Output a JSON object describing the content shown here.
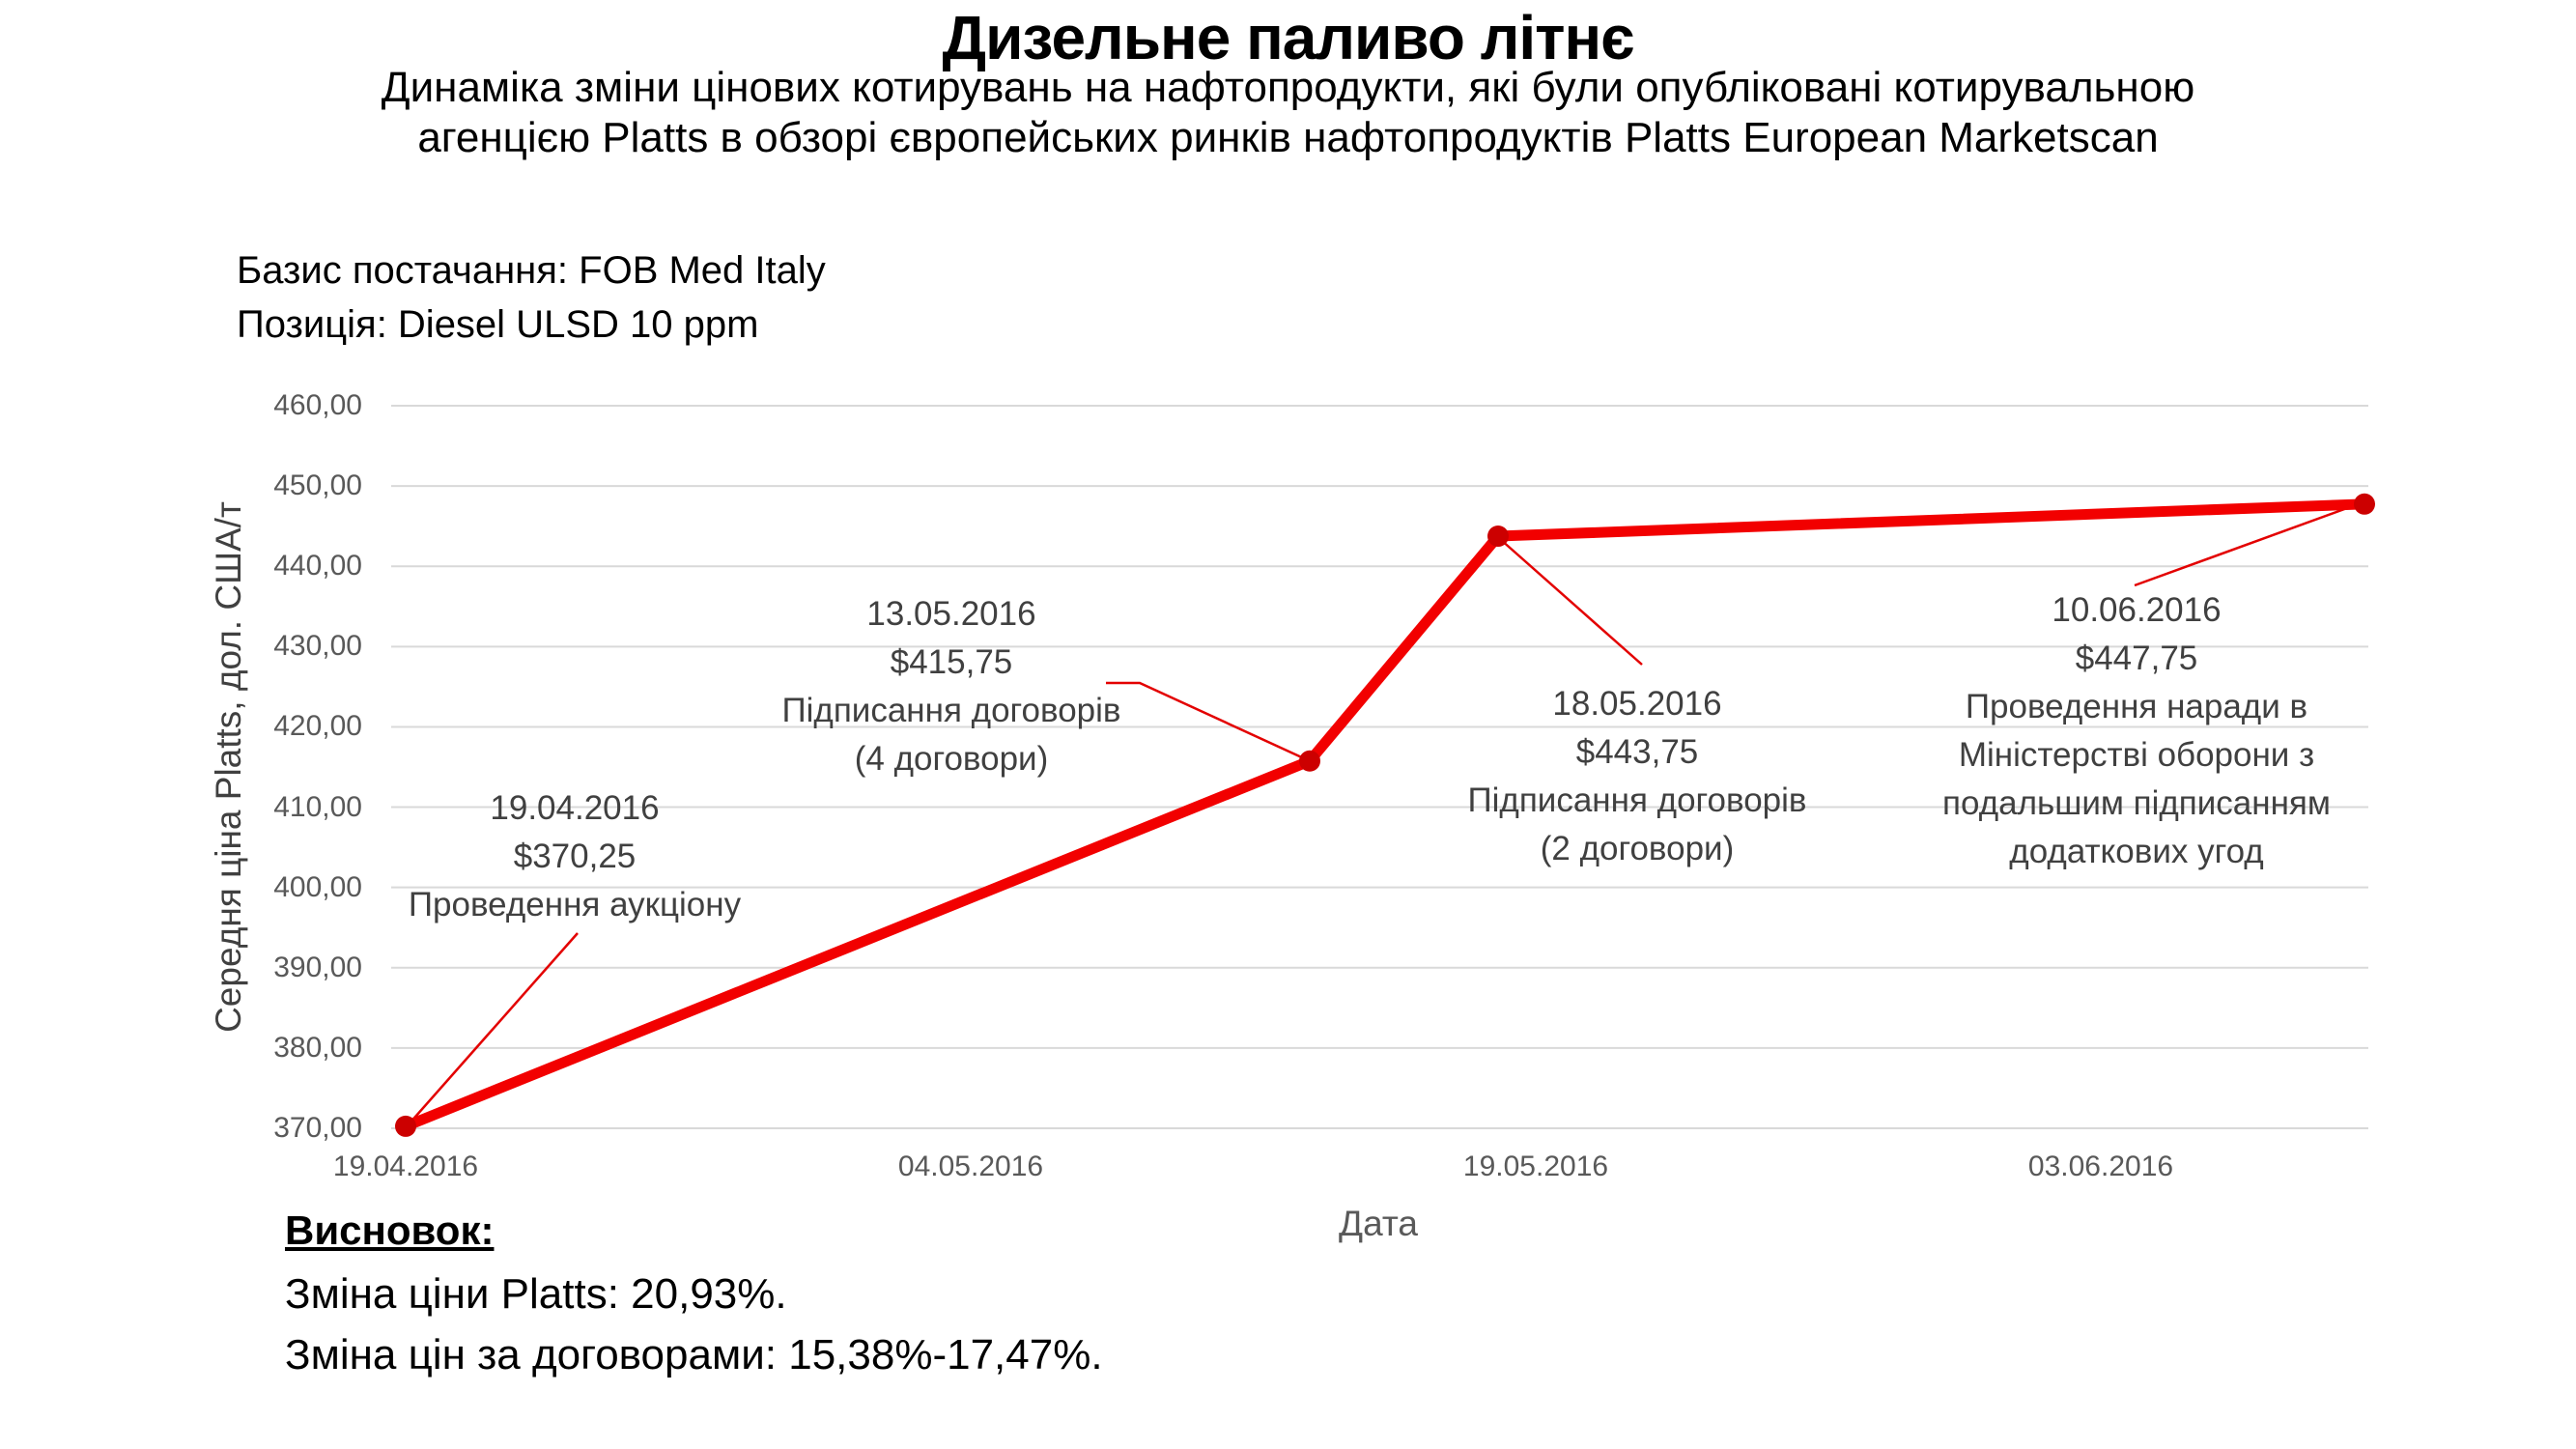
{
  "header": {
    "title": "Дизельне паливо літнє",
    "subtitle_lines": [
      "Динаміка зміни цінових котирувань на нафтопродукти, які були опубліковані котирувальною",
      "агенцією Platts в обзорі європейських ринків нафтопродуктів Platts European Marketscan"
    ]
  },
  "info": {
    "basis": "Базис постачання: FOB Med Italy",
    "position": "Позиція: Diesel ULSD 10 ppm"
  },
  "chart_data": {
    "type": "line",
    "title": "",
    "xlabel": "Дата",
    "ylabel": "Середня ціна Platts, дол. США/т",
    "ylim": [
      370,
      460
    ],
    "ytick_step": 10,
    "ytick_labels": [
      "460,00",
      "450,00",
      "440,00",
      "430,00",
      "420,00",
      "410,00",
      "400,00",
      "390,00",
      "380,00",
      "370,00"
    ],
    "xticks": [
      "19.04.2016",
      "04.05.2016",
      "19.05.2016",
      "03.06.2016"
    ],
    "grid": true,
    "legend": "none",
    "colors": {
      "series_line": "#f20000",
      "marker": "#cc0000",
      "leader": "#e30000",
      "gridline": "#d9d9d9"
    },
    "series": [
      {
        "name": "Середня ціна Platts",
        "points": [
          {
            "date": "19.04.2016",
            "value": 370.25
          },
          {
            "date": "13.05.2016",
            "value": 415.75
          },
          {
            "date": "18.05.2016",
            "value": 443.75
          },
          {
            "date": "10.06.2016",
            "value": 447.75
          }
        ]
      }
    ],
    "annotations": [
      {
        "lines": [
          "19.04.2016",
          "$370,25",
          "Проведення аукціону"
        ]
      },
      {
        "lines": [
          "13.05.2016",
          "$415,75",
          "Підписання договорів",
          "(4 договори)"
        ]
      },
      {
        "lines": [
          "18.05.2016",
          "$443,75",
          "Підписання договорів",
          "(2 договори)"
        ]
      },
      {
        "lines": [
          "10.06.2016",
          "$447,75",
          "Проведення наради в",
          "Міністерстві оборони з",
          "подальшим підписанням",
          "додаткових угод"
        ]
      }
    ]
  },
  "conclusion": {
    "heading": "Висновок:",
    "lines": [
      "Зміна ціни Platts: 20,93%.",
      "Зміна цін за договорами: 15,38%-17,47%."
    ]
  }
}
